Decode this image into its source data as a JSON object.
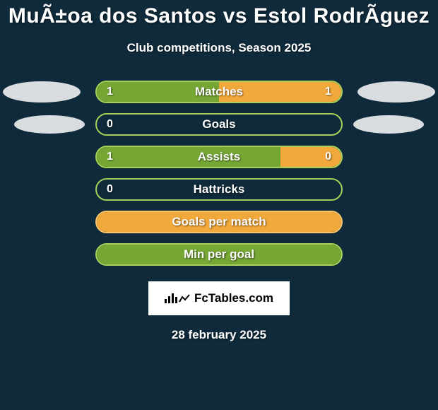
{
  "background_color": "#0f2a3a",
  "title": "MuÃ±oa dos Santos vs Estol RodrÃguez",
  "subtitle": "Club competitions, Season 2025",
  "footer_date": "28 february 2025",
  "logo": {
    "text": "FcTables.com",
    "box_bg": "#ffffff",
    "text_color": "#000000"
  },
  "ellipse_color": "#d9dde0",
  "colors": {
    "green_fill": "#76a735",
    "green_border": "#a7d05a",
    "orange_fill": "#f2a93b",
    "orange_border": "#f7c66d"
  },
  "stats": [
    {
      "label": "Matches",
      "left_value": "1",
      "right_value": "1",
      "left_pct": 50,
      "right_pct": 50,
      "left_color": "#76a735",
      "right_color": "#f2a93b",
      "border_color": "#a7d05a",
      "show_left_ellipse": true,
      "show_right_ellipse": true,
      "ellipse_size": "big"
    },
    {
      "label": "Goals",
      "left_value": "0",
      "right_value": "",
      "left_pct": 100,
      "right_pct": 0,
      "left_color": "transparent",
      "right_color": "transparent",
      "border_color": "#a7d05a",
      "show_left_ellipse": true,
      "show_right_ellipse": true,
      "ellipse_size": "small"
    },
    {
      "label": "Assists",
      "left_value": "1",
      "right_value": "0",
      "left_pct": 75,
      "right_pct": 25,
      "left_color": "#76a735",
      "right_color": "#f2a93b",
      "border_color": "#a7d05a",
      "show_left_ellipse": false,
      "show_right_ellipse": false,
      "ellipse_size": "none"
    },
    {
      "label": "Hattricks",
      "left_value": "0",
      "right_value": "",
      "left_pct": 100,
      "right_pct": 0,
      "left_color": "transparent",
      "right_color": "transparent",
      "border_color": "#a7d05a",
      "show_left_ellipse": false,
      "show_right_ellipse": false,
      "ellipse_size": "none"
    },
    {
      "label": "Goals per match",
      "left_value": "",
      "right_value": "",
      "left_pct": 100,
      "right_pct": 0,
      "left_color": "#f2a93b",
      "right_color": "transparent",
      "border_color": "#f7c66d",
      "show_left_ellipse": false,
      "show_right_ellipse": false,
      "ellipse_size": "none"
    },
    {
      "label": "Min per goal",
      "left_value": "",
      "right_value": "",
      "left_pct": 100,
      "right_pct": 0,
      "left_color": "#76a735",
      "right_color": "transparent",
      "border_color": "#a7d05a",
      "show_left_ellipse": false,
      "show_right_ellipse": false,
      "ellipse_size": "none"
    }
  ]
}
